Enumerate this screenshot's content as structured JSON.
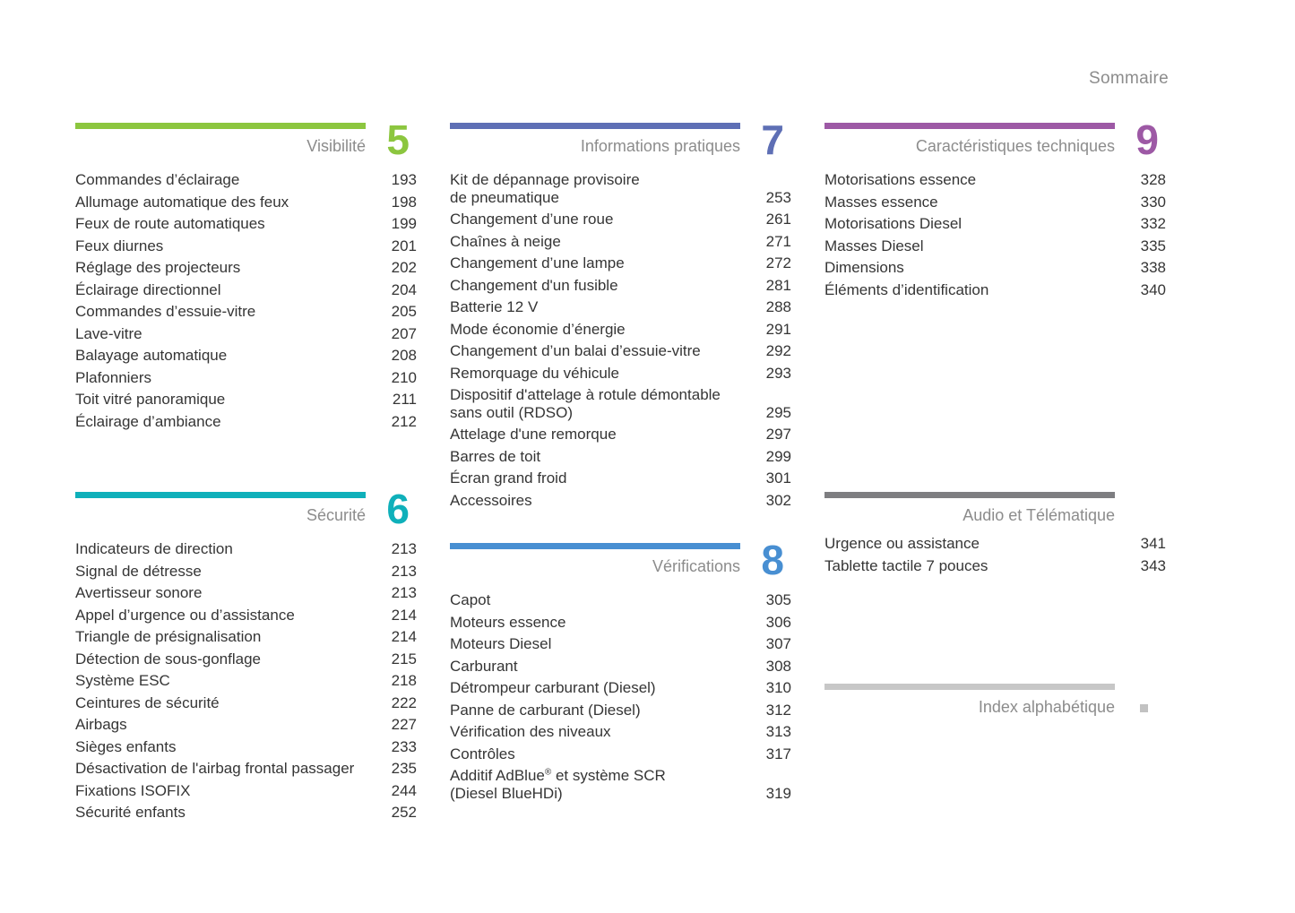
{
  "header": {
    "title": "Sommaire"
  },
  "sections": [
    {
      "name": "visibilite",
      "title": "Visibilité",
      "number": "5",
      "bar_color": "#8cc63f",
      "number_color": "#8cc63f",
      "entries": [
        {
          "label": "Commandes d’éclairage",
          "page": "193"
        },
        {
          "label": "Allumage automatique des feux",
          "page": "198"
        },
        {
          "label": "Feux de route automatiques",
          "page": "199"
        },
        {
          "label": "Feux diurnes",
          "page": "201"
        },
        {
          "label": "Réglage des projecteurs",
          "page": "202"
        },
        {
          "label": "Éclairage directionnel",
          "page": "204"
        },
        {
          "label": "Commandes d’essuie-vitre",
          "page": "205"
        },
        {
          "label": "Lave-vitre",
          "page": "207"
        },
        {
          "label": "Balayage automatique",
          "page": "208"
        },
        {
          "label": "Plafonniers",
          "page": "210"
        },
        {
          "label": "Toit vitré panoramique",
          "page": "211"
        },
        {
          "label": "Éclairage d’ambiance",
          "page": "212"
        }
      ]
    },
    {
      "name": "securite",
      "title": "Sécurité",
      "number": "6",
      "bar_color": "#0fb0ba",
      "number_color": "#0fb0ba",
      "entries": [
        {
          "label": "Indicateurs de direction",
          "page": "213"
        },
        {
          "label": "Signal de détresse",
          "page": "213"
        },
        {
          "label": "Avertisseur sonore",
          "page": "213"
        },
        {
          "label": "Appel d’urgence ou d’assistance",
          "page": "214"
        },
        {
          "label": "Triangle de présignalisation",
          "page": "214"
        },
        {
          "label": "Détection de sous-gonflage",
          "page": "215"
        },
        {
          "label": "Système ESC",
          "page": "218"
        },
        {
          "label": "Ceintures de sécurité",
          "page": "222"
        },
        {
          "label": "Airbags",
          "page": "227"
        },
        {
          "label": "Sièges enfants",
          "page": "233"
        },
        {
          "label": "Désactivation de l'airbag frontal passager",
          "page": "235"
        },
        {
          "label": "Fixations ISOFIX",
          "page": "244"
        },
        {
          "label": "Sécurité enfants",
          "page": "252"
        }
      ]
    },
    {
      "name": "informations-pratiques",
      "title": "Informations pratiques",
      "number": "7",
      "bar_color": "#5e6fb5",
      "number_color": "#5e6fb5",
      "entries": [
        {
          "label": "Kit de dépannage provisoire\nde pneumatique",
          "page": "253"
        },
        {
          "label": "Changement d’une roue",
          "page": "261"
        },
        {
          "label": "Chaînes à neige",
          "page": "271"
        },
        {
          "label": "Changement d’une lampe",
          "page": "272"
        },
        {
          "label": "Changement d'un fusible",
          "page": "281"
        },
        {
          "label": "Batterie 12 V",
          "page": "288"
        },
        {
          "label": "Mode économie d’énergie",
          "page": "291"
        },
        {
          "label": "Changement d’un balai d’essuie-vitre",
          "page": "292"
        },
        {
          "label": "Remorquage du véhicule",
          "page": "293"
        },
        {
          "label": "Dispositif d'attelage à rotule démontable\nsans outil (RDSO)",
          "page": "295"
        },
        {
          "label": "Attelage d'une remorque",
          "page": "297"
        },
        {
          "label": "Barres de toit",
          "page": "299"
        },
        {
          "label": "Écran grand froid",
          "page": "301"
        },
        {
          "label": "Accessoires",
          "page": "302"
        }
      ]
    },
    {
      "name": "verifications",
      "title": "Vérifications",
      "number": "8",
      "bar_color": "#488fd2",
      "number_color": "#488fd2",
      "entries": [
        {
          "label": "Capot",
          "page": "305"
        },
        {
          "label": "Moteurs essence",
          "page": "306"
        },
        {
          "label": "Moteurs Diesel",
          "page": "307"
        },
        {
          "label": "Carburant",
          "page": "308"
        },
        {
          "label": "Détrompeur carburant (Diesel)",
          "page": "310"
        },
        {
          "label": "Panne de carburant (Diesel)",
          "page": "312"
        },
        {
          "label": "Vérification des niveaux",
          "page": "313"
        },
        {
          "label": "Contrôles",
          "page": "317"
        },
        {
          "label": "Additif AdBlue® et système SCR\n(Diesel BlueHDi)",
          "page": "319"
        }
      ]
    },
    {
      "name": "caracteristiques-techniques",
      "title": "Caractéristiques techniques",
      "number": "9",
      "bar_color": "#9d59a5",
      "number_color": "#9d59a5",
      "entries": [
        {
          "label": "Motorisations essence",
          "page": "328"
        },
        {
          "label": "Masses essence",
          "page": "330"
        },
        {
          "label": "Motorisations Diesel",
          "page": "332"
        },
        {
          "label": "Masses Diesel",
          "page": "335"
        },
        {
          "label": "Dimensions",
          "page": "338"
        },
        {
          "label": "Éléments d’identification",
          "page": "340"
        }
      ]
    },
    {
      "name": "audio-telematique",
      "title": "Audio et Télématique",
      "number": "",
      "bar_color": "#7e7e81",
      "number_color": "#7e7e81",
      "entries": [
        {
          "label": "Urgence ou assistance",
          "page": "341"
        },
        {
          "label": "Tablette tactile 7 pouces",
          "page": "343"
        }
      ]
    },
    {
      "name": "index-alphabetique",
      "title": "Index alphabétique",
      "number": "",
      "bar_color": "#c7c7c7",
      "marker_color": "#c2c2c2",
      "entries": []
    }
  ]
}
